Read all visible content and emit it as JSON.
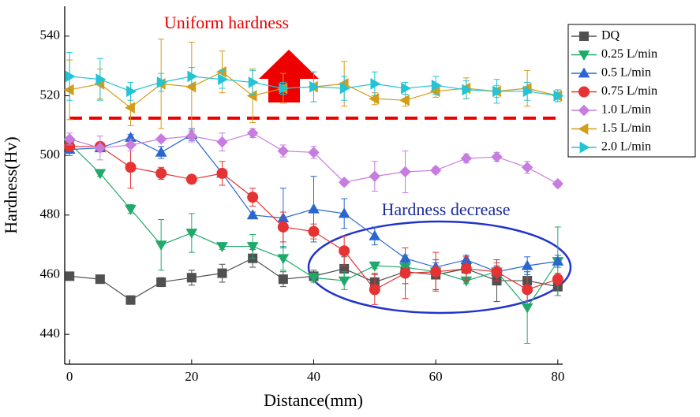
{
  "chart_data": {
    "type": "line",
    "x_label": "Distance(mm)",
    "y_label": "Hardness(Hv)",
    "annotations": [
      "Uniform hardness",
      "Hardness decrease"
    ],
    "threshold": 512.5,
    "xlim": [
      -0.8,
      80.8
    ],
    "ylim": [
      430,
      550
    ],
    "xticks": [
      0,
      20,
      40,
      60,
      80
    ],
    "yticks": [
      440,
      460,
      480,
      500,
      520,
      540
    ],
    "legend": "right",
    "x": [
      0,
      5,
      10,
      15,
      20,
      25,
      30,
      35,
      40,
      45,
      50,
      55,
      60,
      65,
      70,
      75,
      80
    ],
    "series": [
      {
        "name": "DQ",
        "color": "#505050",
        "marker": "square",
        "values": [
          459.5,
          458.5,
          451.5,
          457.5,
          459,
          460.5,
          465.5,
          458.5,
          459.5,
          462,
          457.5,
          461,
          460,
          462,
          458,
          458,
          456
        ],
        "errors": [
          1,
          1,
          1,
          1.5,
          2.5,
          3,
          3,
          2.5,
          2,
          4,
          3,
          4,
          5,
          3,
          7,
          3,
          3
        ]
      },
      {
        "name": "0.25 L/min",
        "color": "#1faa6a",
        "marker": "triangle-down",
        "values": [
          504,
          494,
          482,
          470,
          474,
          469.5,
          469.5,
          465.5,
          459,
          458,
          463,
          462.5,
          461,
          458,
          461,
          449,
          464.5
        ],
        "errors": [
          1,
          1,
          1.5,
          8.5,
          6.5,
          1,
          4,
          4,
          1.5,
          3,
          1,
          1.5,
          1.5,
          1,
          1.5,
          12,
          11.5
        ]
      },
      {
        "name": "0.5 L/min",
        "color": "#2a66d0",
        "marker": "triangle-up",
        "values": [
          502,
          502.5,
          506,
          501,
          507,
          494,
          480,
          479,
          482,
          480.5,
          473,
          465.5,
          462.5,
          465,
          461,
          463,
          464.5
        ],
        "errors": [
          2,
          1,
          1,
          2,
          2,
          1,
          1,
          10,
          11,
          5,
          3,
          1,
          1.5,
          1.5,
          2,
          3,
          2
        ]
      },
      {
        "name": "0.75 L/min",
        "color": "#e63232",
        "marker": "circle",
        "values": [
          503,
          503,
          496,
          494,
          492,
          494,
          486,
          476,
          474.5,
          468,
          455,
          460.5,
          461,
          462,
          461,
          455,
          458.5
        ],
        "errors": [
          1,
          1,
          7,
          2,
          1,
          4,
          3,
          5,
          2.5,
          5,
          5,
          8.5,
          6.5,
          4,
          3,
          4,
          2
        ]
      },
      {
        "name": "1.0 L/min",
        "color": "#c77ce0",
        "marker": "diamond",
        "values": [
          505.5,
          502.5,
          503.5,
          505.5,
          506.5,
          504.5,
          507.5,
          501.5,
          501,
          491,
          493,
          494.5,
          495,
          499,
          499.5,
          496,
          490.5
        ],
        "errors": [
          2,
          4,
          2,
          1,
          2,
          3,
          1.5,
          2,
          2,
          1,
          5,
          7,
          1,
          1.5,
          1.5,
          2,
          1
        ]
      },
      {
        "name": "1.5 L/min",
        "color": "#d49c18",
        "marker": "triangle-left",
        "values": [
          522,
          524,
          516,
          524,
          523,
          528,
          520,
          522.5,
          523,
          524,
          519,
          518.5,
          521.5,
          522.5,
          521.5,
          522.5,
          520
        ],
        "errors": [
          10,
          5,
          6,
          15,
          15,
          7,
          9,
          5,
          5,
          7.5,
          2,
          2,
          2,
          3.5,
          2,
          6,
          2
        ]
      },
      {
        "name": "2.0 L/min",
        "color": "#22c4d6",
        "marker": "triangle-right",
        "values": [
          526.5,
          525.5,
          521.5,
          524.5,
          526.5,
          525.5,
          524.5,
          522.5,
          523,
          522.5,
          524,
          522.5,
          523.5,
          522,
          521.5,
          521.5,
          520
        ],
        "errors": [
          8,
          7,
          3,
          3,
          3,
          3,
          4,
          2,
          5,
          4,
          4,
          2,
          3,
          3,
          4,
          3,
          2
        ]
      }
    ]
  }
}
